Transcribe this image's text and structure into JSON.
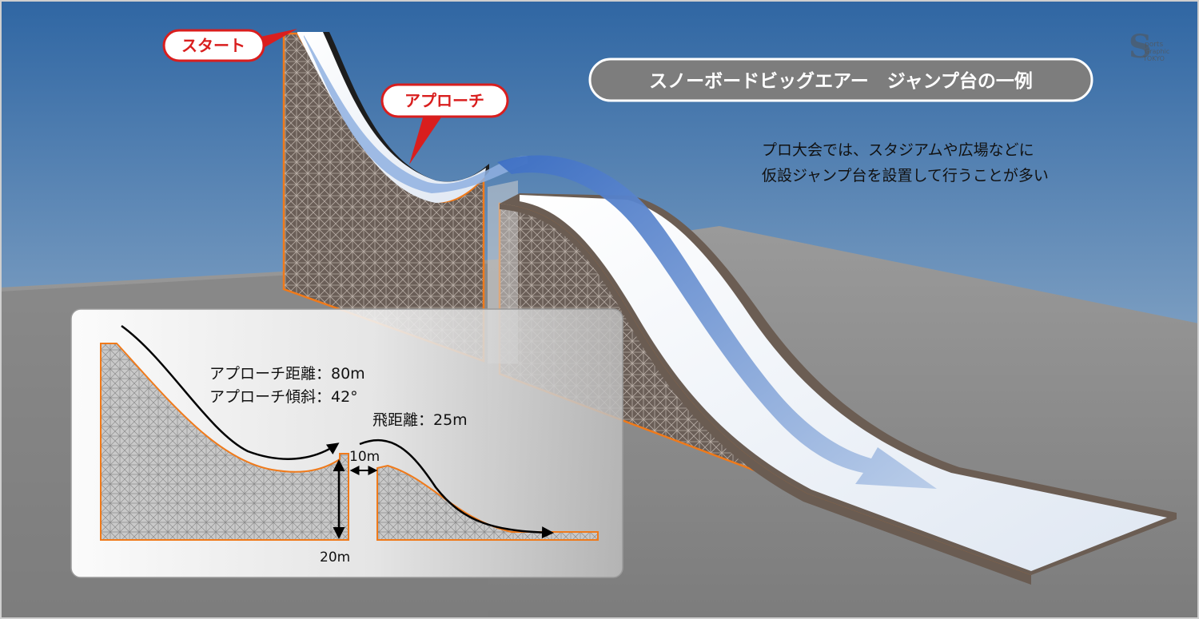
{
  "title": "スノーボードビッグエアー　ジャンプ台の一例",
  "description_lines": [
    "プロ大会では、スタジアムや広場などに",
    "仮設ジャンプ台を設置して行うことが多い"
  ],
  "callouts": {
    "start": "スタート",
    "approach": "アプローチ"
  },
  "specs": {
    "approach_distance": "アプローチ距離：80m",
    "approach_slope": "アプローチ傾斜：42°",
    "flight_distance": "飛距離：25m",
    "gap": "10m",
    "height": "20m"
  },
  "logo_text": "Sports Graphic TOKYO",
  "colors": {
    "sky_top": "#2f6aa6",
    "sky_bottom": "#c3d1df",
    "ground": "#8e8e8e",
    "scaffold": "#6e615a",
    "outline": "#f07a1a",
    "callout_red": "#d91e1e",
    "arrow_blue": "#5b86cf"
  }
}
